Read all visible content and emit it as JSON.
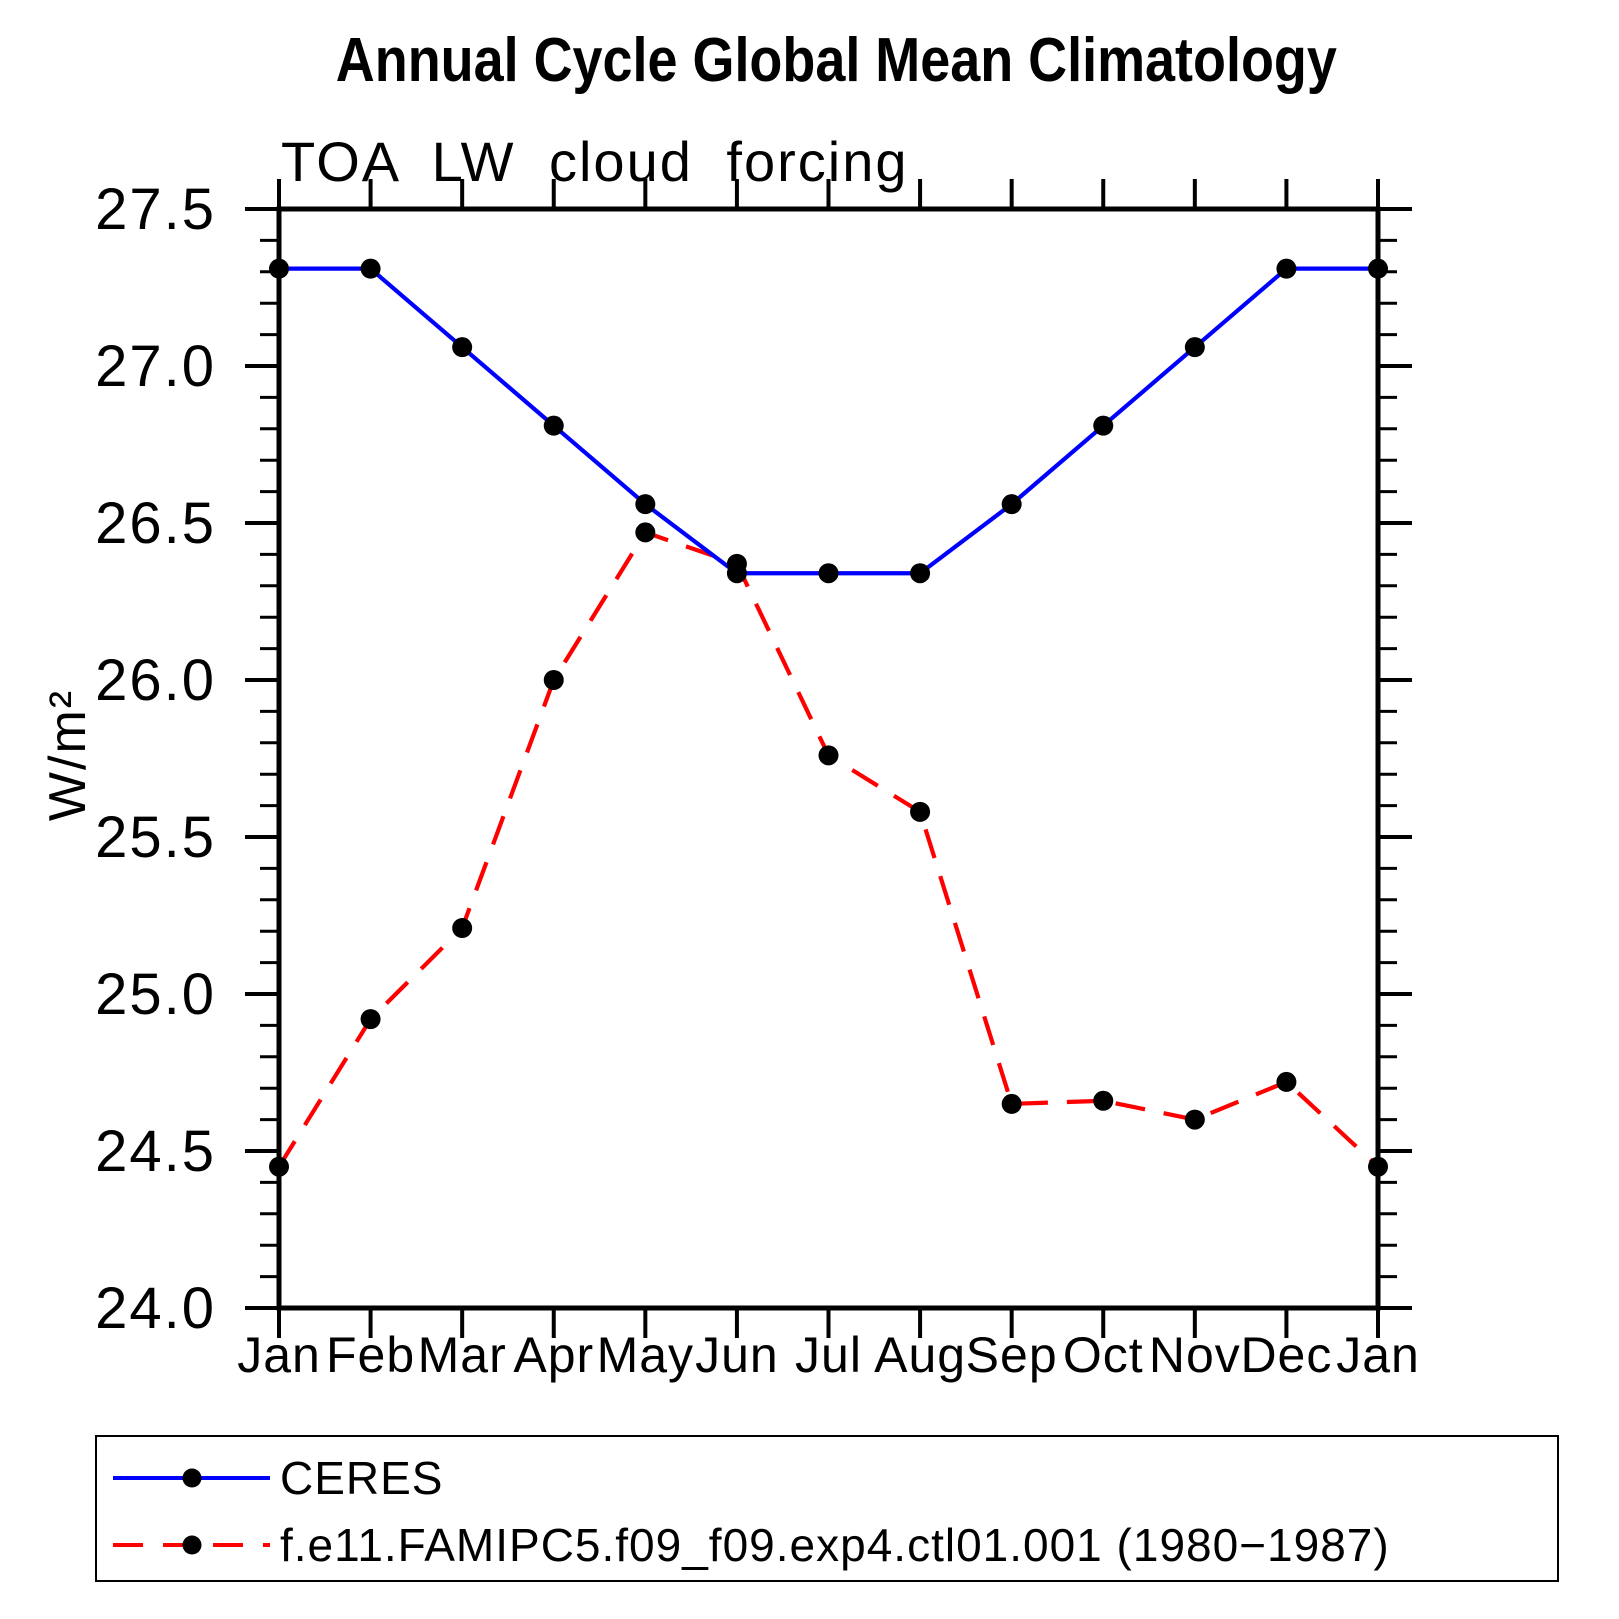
{
  "chart_data": {
    "type": "line",
    "title": "Annual Cycle Global Mean Climatology",
    "subtitle": "TOA LW cloud forcing",
    "ylabel": "W/m²",
    "xlabel": "",
    "categories": [
      "Jan",
      "Feb",
      "Mar",
      "Apr",
      "May",
      "Jun",
      "Jul",
      "Aug",
      "Sep",
      "Oct",
      "Nov",
      "Dec",
      "Jan"
    ],
    "series": [
      {
        "name": "CERES",
        "color": "#0000ff",
        "line_style": "solid",
        "marker": "filled-circle",
        "marker_color": "#000000",
        "values": [
          27.31,
          27.31,
          27.06,
          26.81,
          26.56,
          26.34,
          26.34,
          26.34,
          26.56,
          26.81,
          27.06,
          27.31,
          27.31
        ]
      },
      {
        "name": "f.e11.FAMIPC5.f09_f09.exp4.ctl01.001 (1980−1987)",
        "color": "#ff0000",
        "line_style": "dashed",
        "marker": "filled-circle",
        "marker_color": "#000000",
        "values": [
          24.45,
          24.92,
          25.21,
          26.0,
          26.47,
          26.37,
          25.76,
          25.58,
          24.65,
          24.66,
          24.6,
          24.72,
          24.45
        ]
      }
    ],
    "ylim": [
      24.0,
      27.5
    ],
    "ytick_labels": [
      "24.0",
      "24.5",
      "25.0",
      "25.5",
      "26.0",
      "26.5",
      "27.0",
      "27.5"
    ],
    "ytick_major_step": 0.5,
    "ytick_minor_step": 0.1,
    "grid": false,
    "legend_position": "bottom-box",
    "axis_color": "#000000"
  }
}
